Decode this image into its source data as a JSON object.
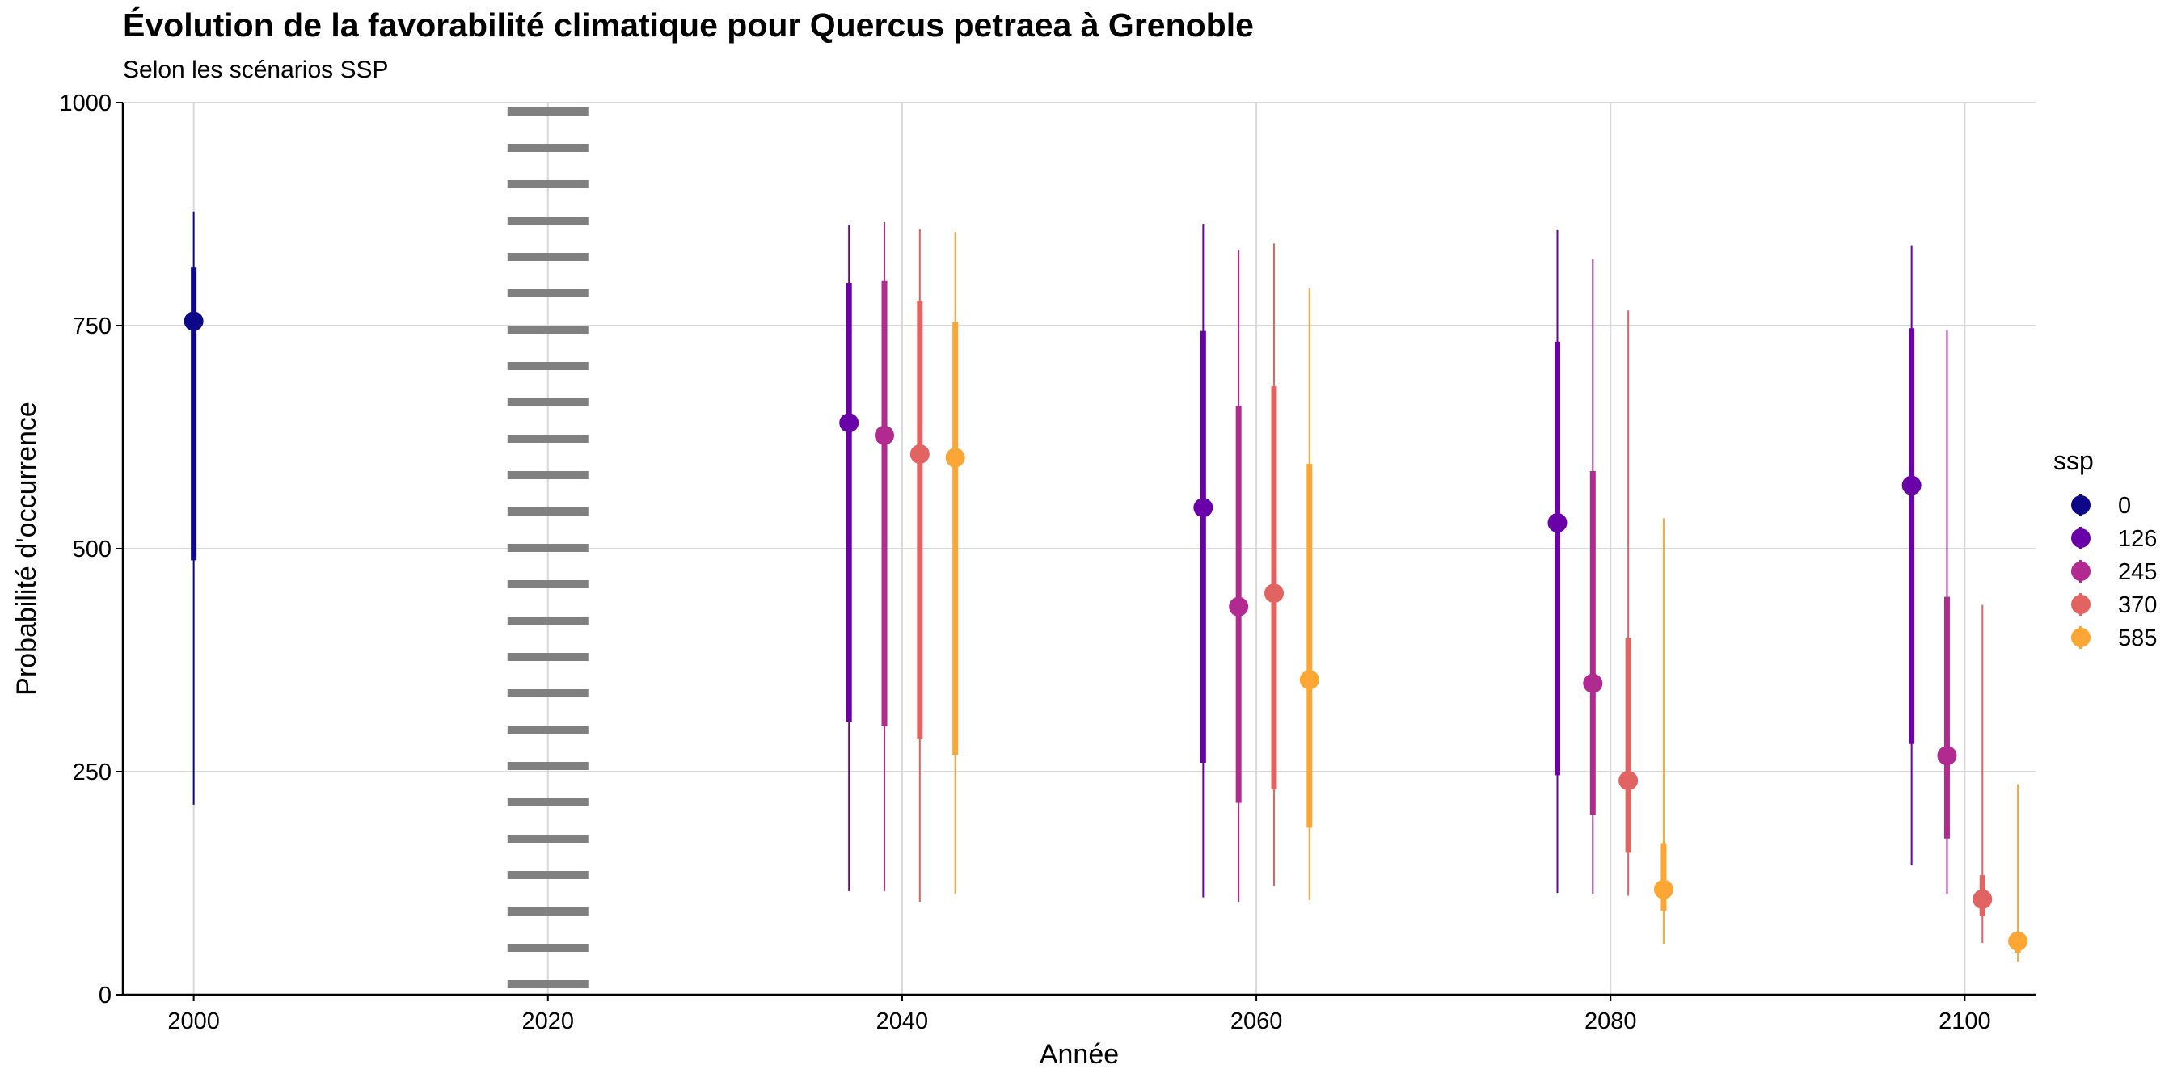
{
  "chart_data": {
    "type": "pointrange",
    "title": "Évolution de la favorabilité climatique pour Quercus petraea à Grenoble",
    "subtitle": "Selon les scénarios SSP",
    "xlabel": "Année",
    "ylabel": "Probabilité d'occurrence",
    "xlim": [
      1996,
      2104
    ],
    "ylim": [
      0,
      1000
    ],
    "x_ticks": [
      2000,
      2020,
      2040,
      2060,
      2080,
      2100
    ],
    "y_ticks": [
      0,
      250,
      500,
      750,
      1000
    ],
    "grid": true,
    "reference_line": {
      "x": 2020,
      "style": "dotted",
      "color": "#808080"
    },
    "legend": {
      "title": "ssp",
      "placement": "right"
    },
    "series": [
      {
        "name": "0",
        "color": "#0d0887",
        "points": [
          {
            "x": 2000,
            "y": 755,
            "inner": [
              487,
              815
            ],
            "outer": [
              213,
              878
            ]
          }
        ]
      },
      {
        "name": "126",
        "color": "#6a00a8",
        "points": [
          {
            "x": 2037,
            "y": 641,
            "inner": [
              306,
              798
            ],
            "outer": [
              116,
              863
            ]
          },
          {
            "x": 2057,
            "y": 546,
            "inner": [
              260,
              744
            ],
            "outer": [
              109,
              864
            ]
          },
          {
            "x": 2077,
            "y": 529,
            "inner": [
              246,
              732
            ],
            "outer": [
              114,
              857
            ]
          },
          {
            "x": 2097,
            "y": 571,
            "inner": [
              281,
              747
            ],
            "outer": [
              145,
              840
            ]
          }
        ]
      },
      {
        "name": "245",
        "color": "#b12a90",
        "points": [
          {
            "x": 2039,
            "y": 627,
            "inner": [
              301,
              800
            ],
            "outer": [
              116,
              866
            ]
          },
          {
            "x": 2059,
            "y": 435,
            "inner": [
              215,
              660
            ],
            "outer": [
              104,
              835
            ]
          },
          {
            "x": 2079,
            "y": 349,
            "inner": [
              202,
              587
            ],
            "outer": [
              113,
              825
            ]
          },
          {
            "x": 2099,
            "y": 268,
            "inner": [
              175,
              446
            ],
            "outer": [
              113,
              745
            ]
          }
        ]
      },
      {
        "name": "370",
        "color": "#e16462",
        "points": [
          {
            "x": 2041,
            "y": 606,
            "inner": [
              287,
              778
            ],
            "outer": [
              104,
              858
            ]
          },
          {
            "x": 2061,
            "y": 450,
            "inner": [
              230,
              682
            ],
            "outer": [
              122,
              842
            ]
          },
          {
            "x": 2081,
            "y": 240,
            "inner": [
              159,
              400
            ],
            "outer": [
              111,
              767
            ]
          },
          {
            "x": 2101,
            "y": 107,
            "inner": [
              88,
              134
            ],
            "outer": [
              58,
              437
            ]
          }
        ]
      },
      {
        "name": "585",
        "color": "#fca636",
        "points": [
          {
            "x": 2043,
            "y": 602,
            "inner": [
              269,
              754
            ],
            "outer": [
              113,
              855
            ]
          },
          {
            "x": 2063,
            "y": 353,
            "inner": [
              187,
              595
            ],
            "outer": [
              106,
              792
            ]
          },
          {
            "x": 2083,
            "y": 118,
            "inner": [
              94,
              170
            ],
            "outer": [
              57,
              534
            ]
          },
          {
            "x": 2103,
            "y": 60,
            "inner": [
              47,
              70
            ],
            "outer": [
              37,
              236
            ]
          }
        ]
      }
    ]
  }
}
